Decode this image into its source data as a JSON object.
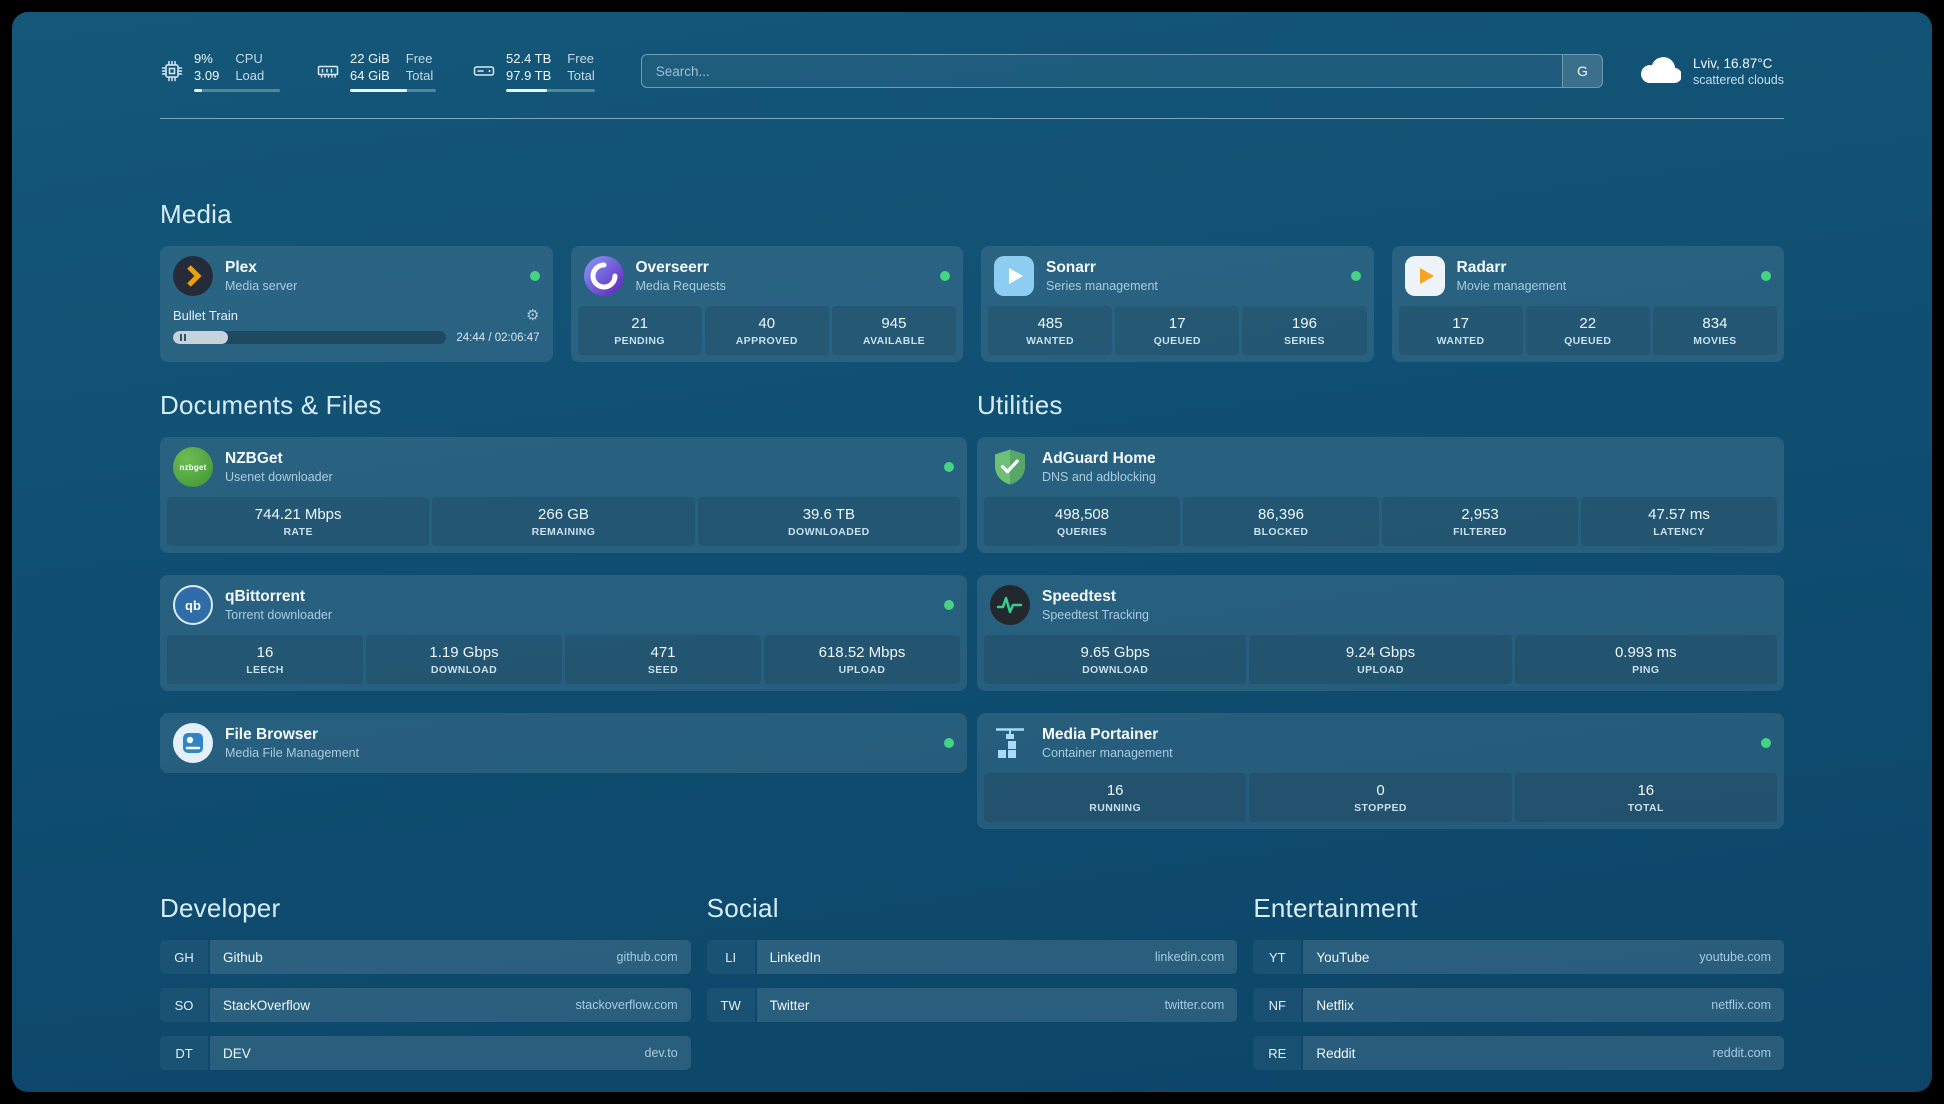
{
  "header": {
    "resources": {
      "cpu": {
        "value_top": "9%",
        "value_bottom": "3.09",
        "label_top": "CPU",
        "label_bottom": "Load",
        "usage_percent": 9
      },
      "memory": {
        "value_top": "22 GiB",
        "value_bottom": "64 GiB",
        "label_top": "Free",
        "label_bottom": "Total",
        "usage_percent": 66
      },
      "disk": {
        "value_top": "52.4 TB",
        "value_bottom": "97.9 TB",
        "label_top": "Free",
        "label_bottom": "Total",
        "usage_percent": 46
      }
    },
    "search": {
      "placeholder": "Search...",
      "provider_button": "G"
    },
    "weather": {
      "location": "Lviv, 16.87°C",
      "condition": "scattered clouds"
    }
  },
  "sections": {
    "media": {
      "title": "Media",
      "plex": {
        "name": "Plex",
        "subtitle": "Media server",
        "status": "online",
        "now_playing": {
          "title": "Bullet Train",
          "time_display": "24:44 / 02:06:47",
          "progress_percent": 20
        }
      },
      "overseerr": {
        "name": "Overseerr",
        "subtitle": "Media Requests",
        "status": "online",
        "stats": [
          {
            "value": "21",
            "label": "PENDING"
          },
          {
            "value": "40",
            "label": "APPROVED"
          },
          {
            "value": "945",
            "label": "AVAILABLE"
          }
        ]
      },
      "sonarr": {
        "name": "Sonarr",
        "subtitle": "Series management",
        "status": "online",
        "stats": [
          {
            "value": "485",
            "label": "WANTED"
          },
          {
            "value": "17",
            "label": "QUEUED"
          },
          {
            "value": "196",
            "label": "SERIES"
          }
        ]
      },
      "radarr": {
        "name": "Radarr",
        "subtitle": "Movie management",
        "status": "online",
        "stats": [
          {
            "value": "17",
            "label": "WANTED"
          },
          {
            "value": "22",
            "label": "QUEUED"
          },
          {
            "value": "834",
            "label": "MOVIES"
          }
        ]
      }
    },
    "documents": {
      "title": "Documents & Files",
      "nzbget": {
        "name": "NZBGet",
        "subtitle": "Usenet downloader",
        "status": "online",
        "stats": [
          {
            "value": "744.21 Mbps",
            "label": "RATE"
          },
          {
            "value": "266 GB",
            "label": "REMAINING"
          },
          {
            "value": "39.6 TB",
            "label": "DOWNLOADED"
          }
        ]
      },
      "qbittorrent": {
        "name": "qBittorrent",
        "subtitle": "Torrent downloader",
        "status": "online",
        "stats": [
          {
            "value": "16",
            "label": "LEECH"
          },
          {
            "value": "1.19 Gbps",
            "label": "DOWNLOAD"
          },
          {
            "value": "471",
            "label": "SEED"
          },
          {
            "value": "618.52 Mbps",
            "label": "UPLOAD"
          }
        ]
      },
      "filebrowser": {
        "name": "File Browser",
        "subtitle": "Media File Management",
        "status": "online"
      }
    },
    "utilities": {
      "title": "Utilities",
      "adguard": {
        "name": "AdGuard Home",
        "subtitle": "DNS and adblocking",
        "stats": [
          {
            "value": "498,508",
            "label": "QUERIES"
          },
          {
            "value": "86,396",
            "label": "BLOCKED"
          },
          {
            "value": "2,953",
            "label": "FILTERED"
          },
          {
            "value": "47.57 ms",
            "label": "LATENCY"
          }
        ]
      },
      "speedtest": {
        "name": "Speedtest",
        "subtitle": "Speedtest Tracking",
        "stats": [
          {
            "value": "9.65 Gbps",
            "label": "DOWNLOAD"
          },
          {
            "value": "9.24 Gbps",
            "label": "UPLOAD"
          },
          {
            "value": "0.993 ms",
            "label": "PING"
          }
        ]
      },
      "portainer": {
        "name": "Media Portainer",
        "subtitle": "Container management",
        "status": "online",
        "stats": [
          {
            "value": "16",
            "label": "RUNNING"
          },
          {
            "value": "0",
            "label": "STOPPED"
          },
          {
            "value": "16",
            "label": "TOTAL"
          }
        ]
      }
    }
  },
  "bookmarks": [
    {
      "title": "Developer",
      "items": [
        {
          "abbr": "GH",
          "name": "Github",
          "url": "github.com"
        },
        {
          "abbr": "SO",
          "name": "StackOverflow",
          "url": "stackoverflow.com"
        },
        {
          "abbr": "DT",
          "name": "DEV",
          "url": "dev.to"
        }
      ]
    },
    {
      "title": "Social",
      "items": [
        {
          "abbr": "LI",
          "name": "LinkedIn",
          "url": "linkedin.com"
        },
        {
          "abbr": "TW",
          "name": "Twitter",
          "url": "twitter.com"
        }
      ]
    },
    {
      "title": "Entertainment",
      "items": [
        {
          "abbr": "YT",
          "name": "YouTube",
          "url": "youtube.com"
        },
        {
          "abbr": "NF",
          "name": "Netflix",
          "url": "netflix.com"
        },
        {
          "abbr": "RE",
          "name": "Reddit",
          "url": "reddit.com"
        }
      ]
    }
  ],
  "icons": {
    "gear": "⚙",
    "nzbget_label": "nzbget",
    "qbittorrent_label": "qb"
  },
  "colors": {
    "status_online": "#45d483",
    "heading": "#d6ecf9",
    "background": "#0f4d70"
  }
}
